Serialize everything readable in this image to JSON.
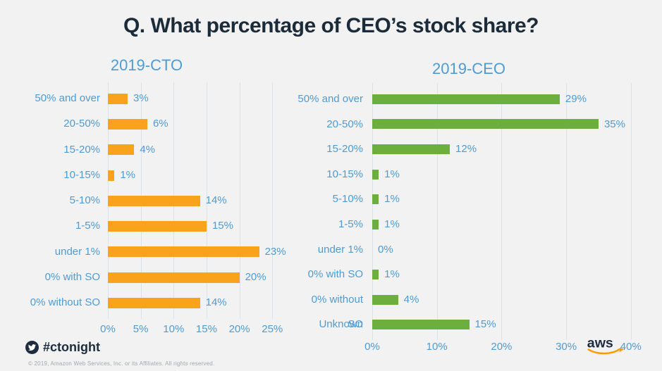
{
  "header": {
    "title": "Q. What percentage of CEO’s stock share?"
  },
  "chart_data": [
    {
      "id": "cto",
      "type": "bar",
      "orientation": "horizontal",
      "title": "2019-CTO",
      "categories": [
        "50% and over",
        "20-50%",
        "15-20%",
        "10-15%",
        "5-10%",
        "1-5%",
        "under 1%",
        "0% with SO",
        "0% without SO"
      ],
      "values": [
        3,
        6,
        4,
        1,
        14,
        15,
        23,
        20,
        14
      ],
      "value_labels": [
        "3%",
        "6%",
        "4%",
        "1%",
        "14%",
        "15%",
        "23%",
        "20%",
        "14%"
      ],
      "xlim": [
        0,
        25
      ],
      "xticks": [
        {
          "value": 0,
          "label": "0%"
        },
        {
          "value": 5,
          "label": "5%"
        },
        {
          "value": 10,
          "label": "10%"
        },
        {
          "value": 15,
          "label": "15%"
        },
        {
          "value": 20,
          "label": "20%"
        },
        {
          "value": 25,
          "label": "25%"
        }
      ],
      "bar_color": "#F9A21C",
      "grid": true,
      "legend": "none"
    },
    {
      "id": "ceo",
      "type": "bar",
      "orientation": "horizontal",
      "title": "2019-CEO",
      "categories": [
        "50% and over",
        "20-50%",
        "15-20%",
        "10-15%",
        "5-10%",
        "1-5%",
        "under 1%",
        "0% with SO",
        "0% without SO",
        "Unknown"
      ],
      "values": [
        29,
        35,
        12,
        1,
        1,
        1,
        0,
        1,
        4,
        15
      ],
      "value_labels": [
        "29%",
        "35%",
        "12%",
        "1%",
        "1%",
        "1%",
        "0%",
        "1%",
        "4%",
        "15%"
      ],
      "xlim": [
        0,
        40
      ],
      "xticks": [
        {
          "value": 0,
          "label": "0%"
        },
        {
          "value": 10,
          "label": "10%"
        },
        {
          "value": 20,
          "label": "20%"
        },
        {
          "value": 30,
          "label": "30%"
        },
        {
          "value": 40,
          "label": "40%"
        }
      ],
      "bar_color": "#6CAF3E",
      "grid": true,
      "legend": "none"
    }
  ],
  "footer": {
    "hashtag": "#ctonight",
    "twitter_icon": "twitter-bird-icon",
    "copyright": "© 2019, Amazon Web Services,  Inc. or its Affiliates.  All rights reserved.",
    "aws_logo_text": "aws"
  },
  "colors": {
    "background": "#F1F2F1",
    "title_text": "#1C2B3A",
    "label_blue": "#4E9BD6",
    "gridline": "#D8E3EC",
    "cto_orange": "#F9A21C",
    "ceo_green": "#6CAF3E",
    "brand_navy": "#1D2C3F",
    "aws_smile_orange": "#F90",
    "copyright_gray": "#A3A8AC"
  }
}
